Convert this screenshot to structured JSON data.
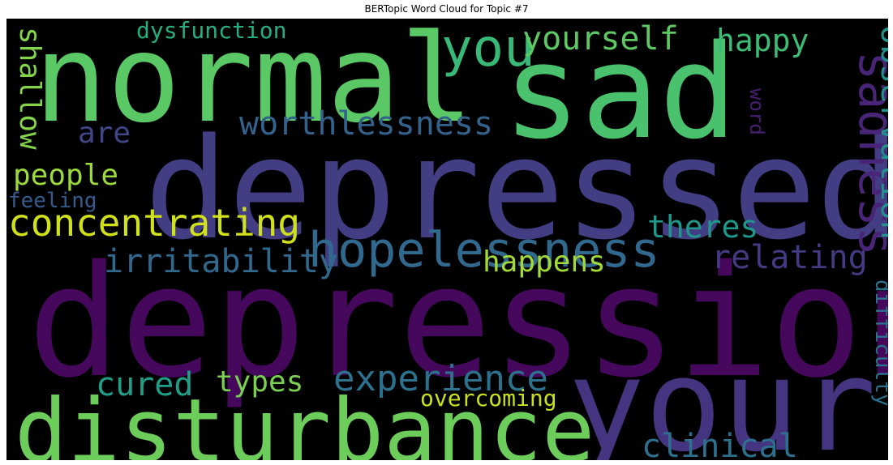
{
  "chart_data": {
    "type": "wordcloud",
    "title": "BERTopic Word Cloud for Topic #7",
    "background": "#000000",
    "colormap": "viridis",
    "words": [
      {
        "text": "depression",
        "color": "#46085c"
      },
      {
        "text": "depressed",
        "color": "#433d84"
      },
      {
        "text": "normal",
        "color": "#5ac864"
      },
      {
        "text": "sad",
        "color": "#4ac16d"
      },
      {
        "text": "your",
        "color": "#453581"
      },
      {
        "text": "disturbance",
        "color": "#6ccd5a"
      },
      {
        "text": "hopelessness",
        "color": "#31688e"
      },
      {
        "text": "you",
        "color": "#38b977"
      },
      {
        "text": "concentrating",
        "color": "#d0e11c"
      },
      {
        "text": "sadness",
        "color": "#482576"
      },
      {
        "text": "experience",
        "color": "#2c728e"
      },
      {
        "text": "worthlessness",
        "color": "#33628d"
      },
      {
        "text": "yourself",
        "color": "#5ec962"
      },
      {
        "text": "irritability",
        "color": "#31688e"
      },
      {
        "text": "observation",
        "color": "#20928c"
      },
      {
        "text": "relating",
        "color": "#443983"
      },
      {
        "text": "theres",
        "color": "#1f988b"
      },
      {
        "text": "happy",
        "color": "#3dbc74"
      },
      {
        "text": "clinical",
        "color": "#2d708e"
      },
      {
        "text": "shallow",
        "color": "#84d44b"
      },
      {
        "text": "cured",
        "color": "#1f9f88"
      },
      {
        "text": "types",
        "color": "#7ad151"
      },
      {
        "text": "happens",
        "color": "#a2da37"
      },
      {
        "text": "people",
        "color": "#9bd93c"
      },
      {
        "text": "dysfunction",
        "color": "#26ad81"
      },
      {
        "text": "are",
        "color": "#3f4788"
      },
      {
        "text": "overcoming",
        "color": "#c8e020"
      },
      {
        "text": "difficulty",
        "color": "#2c728e"
      },
      {
        "text": "feeling",
        "color": "#365c8d"
      },
      {
        "text": "word",
        "color": "#481f70"
      }
    ]
  }
}
